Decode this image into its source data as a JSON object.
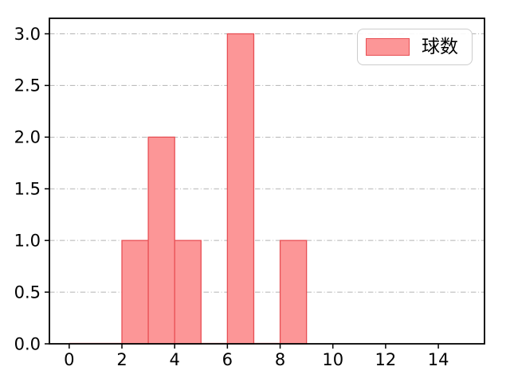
{
  "figure": {
    "background": "#ffffff"
  },
  "chart_data": {
    "type": "bar",
    "title": "",
    "xlabel": "",
    "ylabel": "",
    "legend": {
      "label": "球数",
      "position": "upper right"
    },
    "bars": [
      {
        "x0": 2,
        "x1": 3,
        "count": 1
      },
      {
        "x0": 3,
        "x1": 4,
        "count": 2
      },
      {
        "x0": 4,
        "x1": 5,
        "count": 1
      },
      {
        "x0": 6,
        "x1": 7,
        "count": 3
      },
      {
        "x0": 8,
        "x1": 9,
        "count": 1
      }
    ],
    "baseline": {
      "x0": 0,
      "x1": 9
    },
    "xlim": [
      -0.75,
      15.75
    ],
    "ylim": [
      0,
      3.15
    ],
    "xticks": [
      0,
      2,
      4,
      6,
      8,
      10,
      12,
      14
    ],
    "xtick_labels": [
      "0",
      "2",
      "4",
      "6",
      "8",
      "10",
      "12",
      "14"
    ],
    "yticks": [
      0,
      0.5,
      1,
      1.5,
      2,
      2.5,
      3
    ],
    "ytick_labels": [
      "0.0",
      "0.5",
      "1.0",
      "1.5",
      "2.0",
      "2.5",
      "3.0"
    ],
    "grid": {
      "axis": "y",
      "linestyle": "dashdot",
      "color": "#b3b3b3"
    },
    "colors": {
      "bar_fill": "#fc9697",
      "bar_edge": "#e84f54",
      "baseline": "rgba(232,79,84,0.4)",
      "spine": "#000000",
      "tick": "#000000",
      "tick_label": "#000000",
      "legend_border": "#cccccc",
      "legend_background": "rgba(255,255,255,0.9)"
    }
  }
}
